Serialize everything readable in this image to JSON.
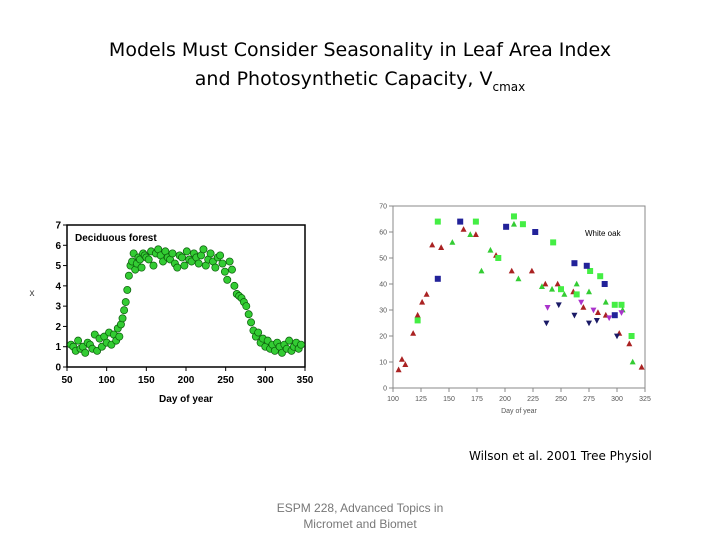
{
  "slide": {
    "title_line1": "Models Must Consider Seasonality in Leaf Area Index",
    "title_line2_main": "and Photosynthetic Capacity, V",
    "title_line2_sub": "cmax",
    "citation": "Wilson et al. 2001 Tree Physiol",
    "footer_line1": "ESPM 228, Advanced Topics in",
    "footer_line2": "Micromet and Biomet"
  },
  "colors": {
    "green": "#33cc33",
    "lime": "#44ee44",
    "red": "#aa2222",
    "blue": "#222299",
    "purple": "#aa33cc",
    "navy": "#1a1a66"
  },
  "chart_data": [
    {
      "type": "scatter",
      "annotation": "Deciduous forest",
      "ylabel": "x",
      "xlabel": "Day of year",
      "xlim": [
        50,
        350
      ],
      "ylim": [
        0,
        7
      ],
      "xticks": [
        50,
        100,
        150,
        200,
        250,
        300,
        350
      ],
      "yticks": [
        0,
        1,
        2,
        3,
        4,
        5,
        6,
        7
      ],
      "grid": false,
      "series": [
        {
          "marker": "circle",
          "color": "green",
          "x": [
            55,
            58,
            61,
            64,
            67,
            70,
            73,
            76,
            79,
            82,
            85,
            88,
            91,
            94,
            97,
            100,
            103,
            106,
            109,
            112,
            114,
            116,
            118,
            120,
            122,
            124,
            126,
            128,
            130,
            132,
            134,
            136,
            138,
            140,
            142,
            144,
            146,
            148,
            150,
            153,
            156,
            159,
            162,
            165,
            168,
            171,
            174,
            177,
            180,
            183,
            186,
            189,
            192,
            195,
            198,
            201,
            204,
            207,
            210,
            213,
            216,
            219,
            222,
            225,
            228,
            231,
            234,
            237,
            240,
            243,
            246,
            249,
            252,
            255,
            258,
            261,
            264,
            267,
            270,
            273,
            276,
            279,
            282,
            285,
            288,
            291,
            294,
            297,
            300,
            303,
            306,
            309,
            312,
            315,
            318,
            321,
            324,
            327,
            330,
            333,
            336,
            339,
            342,
            345
          ],
          "y": [
            1.1,
            1.0,
            0.8,
            1.3,
            0.9,
            1.0,
            0.7,
            1.2,
            1.1,
            0.9,
            1.6,
            0.8,
            1.4,
            1.0,
            1.5,
            1.2,
            1.7,
            1.1,
            1.6,
            1.3,
            1.9,
            1.5,
            2.1,
            2.4,
            2.8,
            3.2,
            3.8,
            4.5,
            5.0,
            5.2,
            5.6,
            4.8,
            5.1,
            5.4,
            5.3,
            4.9,
            5.6,
            5.5,
            5.4,
            5.3,
            5.7,
            5.0,
            5.6,
            5.8,
            5.5,
            5.2,
            5.7,
            5.4,
            5.3,
            5.6,
            5.1,
            4.9,
            5.5,
            5.4,
            5.0,
            5.7,
            5.3,
            5.2,
            5.6,
            5.4,
            5.1,
            5.5,
            5.8,
            5.0,
            5.3,
            5.6,
            5.2,
            4.9,
            5.4,
            5.5,
            5.1,
            4.7,
            4.3,
            5.2,
            4.8,
            4.0,
            3.6,
            3.5,
            3.4,
            3.2,
            3.0,
            2.6,
            2.2,
            1.8,
            1.5,
            1.7,
            1.2,
            1.4,
            1.0,
            1.3,
            0.9,
            1.1,
            0.8,
            1.2,
            1.0,
            0.7,
            1.1,
            0.9,
            1.3,
            0.8,
            1.0,
            1.2,
            0.9,
            1.1
          ]
        }
      ]
    },
    {
      "type": "scatter",
      "annotation": "White oak",
      "xlabel": "Day of year",
      "ylabel": "",
      "xlim": [
        100,
        325
      ],
      "ylim": [
        0,
        70
      ],
      "xticks": [
        100,
        125,
        150,
        175,
        200,
        225,
        250,
        275,
        300,
        325
      ],
      "yticks": [
        0,
        10,
        20,
        30,
        40,
        50,
        60,
        70
      ],
      "grid": false,
      "series": [
        {
          "marker": "triangle-up",
          "color": "red",
          "x": [
            105,
            108,
            111,
            118,
            122,
            126,
            130,
            135,
            143,
            163,
            174,
            192,
            206,
            224,
            236,
            247,
            261,
            270,
            283,
            290,
            302,
            311,
            322
          ],
          "y": [
            7,
            11,
            9,
            21,
            28,
            33,
            36,
            55,
            54,
            61,
            59,
            51,
            45,
            45,
            40,
            40,
            37,
            31,
            29,
            28,
            21,
            17,
            8
          ]
        },
        {
          "marker": "square",
          "color": "lime",
          "x": [
            122,
            140,
            174,
            194,
            208,
            216,
            243,
            250,
            264,
            276,
            285,
            298,
            304,
            313
          ],
          "y": [
            26,
            64,
            64,
            50,
            66,
            63,
            56,
            38,
            36,
            45,
            43,
            32,
            32,
            20
          ]
        },
        {
          "marker": "square",
          "color": "blue",
          "x": [
            140,
            160,
            201,
            227,
            262,
            273,
            289,
            298
          ],
          "y": [
            42,
            64,
            62,
            60,
            48,
            47,
            40,
            28
          ]
        },
        {
          "marker": "triangle-up",
          "color": "green",
          "x": [
            153,
            169,
            179,
            187,
            208,
            212,
            233,
            242,
            253,
            264,
            275,
            290,
            305,
            314
          ],
          "y": [
            56,
            59,
            45,
            53,
            63,
            42,
            39,
            38,
            36,
            40,
            37,
            33,
            30,
            10
          ]
        },
        {
          "marker": "triangle-down",
          "color": "purple",
          "x": [
            238,
            268,
            279,
            293,
            304
          ],
          "y": [
            31,
            33,
            30,
            27,
            29
          ]
        },
        {
          "marker": "triangle-down",
          "color": "navy",
          "x": [
            237,
            248,
            262,
            275,
            282,
            300
          ],
          "y": [
            25,
            32,
            28,
            25,
            26,
            20
          ]
        }
      ]
    }
  ]
}
